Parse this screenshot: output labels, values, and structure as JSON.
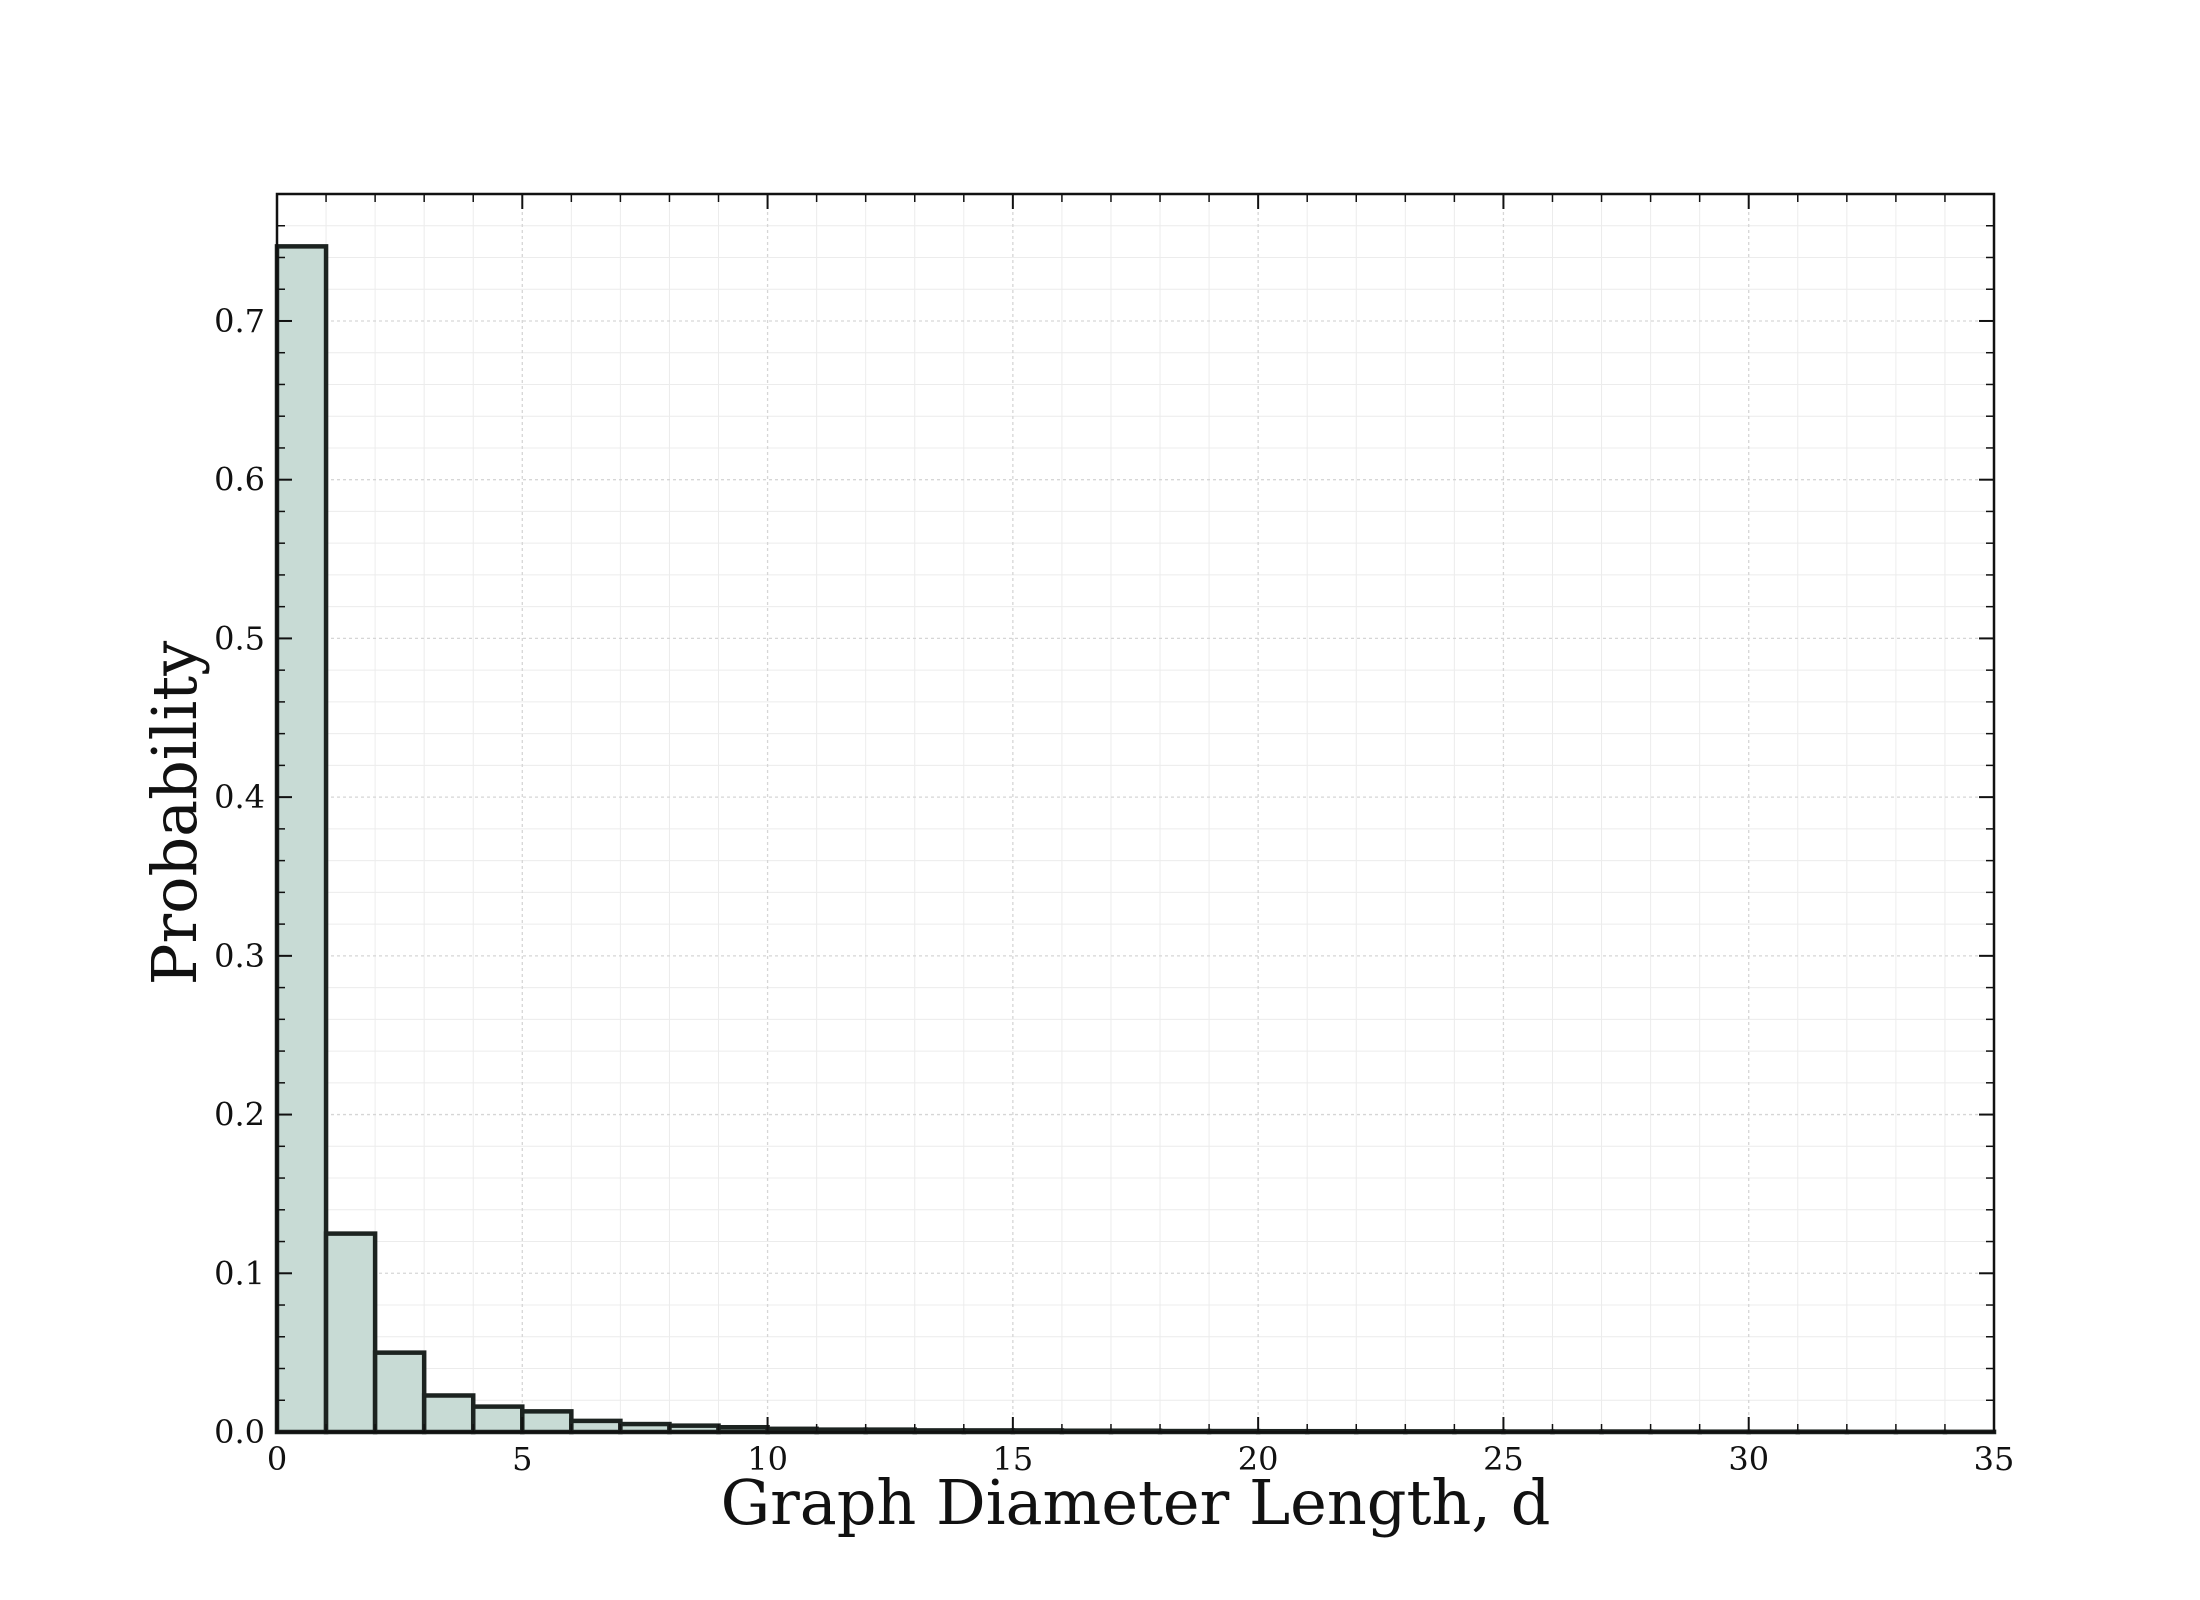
{
  "chart_data": {
    "type": "bar",
    "title": "",
    "xlabel": "Graph Diameter Length, d",
    "ylabel": "Probability",
    "xlim": [
      0,
      35
    ],
    "ylim": [
      0,
      0.78
    ],
    "x_ticks": [
      "0",
      "5",
      "10",
      "15",
      "20",
      "25",
      "30",
      "35"
    ],
    "y_ticks": [
      "0.0",
      "0.1",
      "0.2",
      "0.3",
      "0.4",
      "0.5",
      "0.6",
      "0.7"
    ],
    "bin_width": 1,
    "bins": [
      {
        "x": 0,
        "value": 0.747
      },
      {
        "x": 1,
        "value": 0.125
      },
      {
        "x": 2,
        "value": 0.05
      },
      {
        "x": 3,
        "value": 0.023
      },
      {
        "x": 4,
        "value": 0.016
      },
      {
        "x": 5,
        "value": 0.013
      },
      {
        "x": 6,
        "value": 0.007
      },
      {
        "x": 7,
        "value": 0.005
      },
      {
        "x": 8,
        "value": 0.004
      },
      {
        "x": 9,
        "value": 0.003
      },
      {
        "x": 10,
        "value": 0.002
      },
      {
        "x": 11,
        "value": 0.0015
      },
      {
        "x": 12,
        "value": 0.0015
      },
      {
        "x": 13,
        "value": 0.001
      },
      {
        "x": 14,
        "value": 0.001
      },
      {
        "x": 15,
        "value": 0.001
      },
      {
        "x": 16,
        "value": 0.0008
      },
      {
        "x": 17,
        "value": 0.0008
      },
      {
        "x": 18,
        "value": 0.0006
      },
      {
        "x": 19,
        "value": 0.0006
      },
      {
        "x": 20,
        "value": 0.0005
      },
      {
        "x": 21,
        "value": 0.0005
      },
      {
        "x": 22,
        "value": 0.0004
      },
      {
        "x": 23,
        "value": 0.0004
      },
      {
        "x": 24,
        "value": 0.0004
      },
      {
        "x": 25,
        "value": 0.0003
      },
      {
        "x": 26,
        "value": 0.0003
      },
      {
        "x": 27,
        "value": 0.0003
      },
      {
        "x": 28,
        "value": 0.0002
      },
      {
        "x": 29,
        "value": 0.0002
      },
      {
        "x": 30,
        "value": 0.0002
      },
      {
        "x": 31,
        "value": 0.0002
      },
      {
        "x": 32,
        "value": 0.0001
      },
      {
        "x": 33,
        "value": 0.0001
      },
      {
        "x": 34,
        "value": 0.0001
      }
    ],
    "grid": true,
    "bar_fill": "#c8dbd5",
    "bar_edge": "#1c2320"
  }
}
